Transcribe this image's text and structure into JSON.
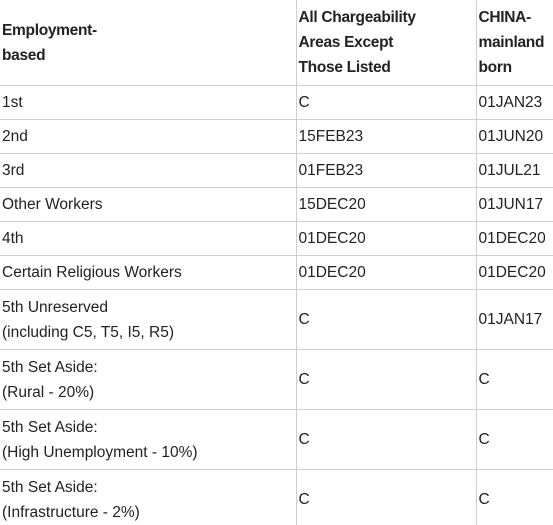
{
  "table": {
    "headers": [
      [
        "Employment-",
        "based"
      ],
      [
        "All Chargeability",
        "Areas Except",
        "Those Listed"
      ],
      [
        "CHINA-",
        "mainland",
        "born"
      ]
    ],
    "rows": [
      {
        "category": [
          "1st"
        ],
        "all_areas": "C",
        "china": "01JAN23"
      },
      {
        "category": [
          "2nd"
        ],
        "all_areas": "15FEB23",
        "china": "01JUN20"
      },
      {
        "category": [
          "3rd"
        ],
        "all_areas": "01FEB23",
        "china": "01JUL21"
      },
      {
        "category": [
          "Other Workers"
        ],
        "all_areas": "15DEC20",
        "china": "01JUN17"
      },
      {
        "category": [
          "4th"
        ],
        "all_areas": "01DEC20",
        "china": "01DEC20"
      },
      {
        "category": [
          "Certain Religious Workers"
        ],
        "all_areas": "01DEC20",
        "china": "01DEC20"
      },
      {
        "category": [
          "5th Unreserved",
          "(including C5, T5, I5, R5)"
        ],
        "all_areas": "C",
        "china": "01JAN17"
      },
      {
        "category": [
          "5th Set Aside:",
          "(Rural - 20%)"
        ],
        "all_areas": "C",
        "china": "C"
      },
      {
        "category": [
          "5th Set Aside:",
          "(High Unemployment - 10%)"
        ],
        "all_areas": "C",
        "china": "C"
      },
      {
        "category": [
          "5th Set Aside:",
          "(Infrastructure - 2%)"
        ],
        "all_areas": "C",
        "china": "C"
      }
    ]
  }
}
